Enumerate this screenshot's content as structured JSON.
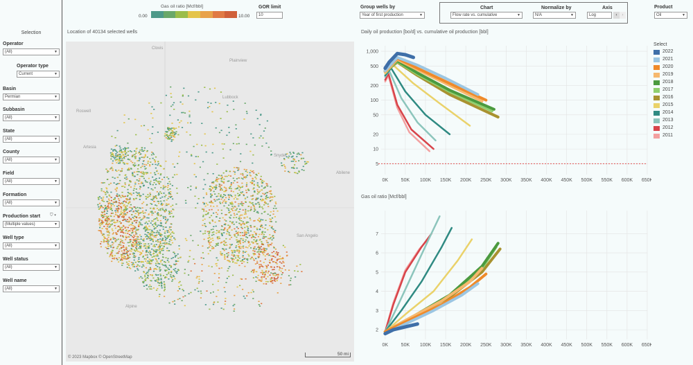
{
  "colors": {
    "accent": "#e07030"
  },
  "gor_legend": {
    "title": "Gas oil ratio [Mcf/bbl]",
    "min": "0.00",
    "max": "10.00",
    "colors": [
      "#4e9a8a",
      "#6aa86a",
      "#9bbd4a",
      "#e4c44a",
      "#e8a24a",
      "#e07a44",
      "#d0603a"
    ]
  },
  "gor_limit": {
    "label": "GOR limit",
    "value": "10"
  },
  "group_by": {
    "label": "Group wells by",
    "value": "Year of first production"
  },
  "chart_ctrl": {
    "label": "Chart",
    "value": "Flow rate vs. cumulative"
  },
  "normalize": {
    "label": "Normalize by",
    "value": "N/A"
  },
  "axis": {
    "label": "Axis",
    "value": "Log"
  },
  "product": {
    "label": "Product",
    "value": "Oil"
  },
  "sidebar": {
    "title": "Selection",
    "filters": [
      {
        "label": "Operator",
        "value": "(All)"
      },
      {
        "label": "Operator type",
        "value": "Current"
      },
      {
        "label": "Basin",
        "value": "Permian"
      },
      {
        "label": "Subbasin",
        "value": "(All)"
      },
      {
        "label": "State",
        "value": "(All)"
      },
      {
        "label": "County",
        "value": "(All)"
      },
      {
        "label": "Field",
        "value": "(All)"
      },
      {
        "label": "Formation",
        "value": "(All)"
      },
      {
        "label": "Production start",
        "value": "(Multiple values)"
      },
      {
        "label": "Well type",
        "value": "(All)"
      },
      {
        "label": "Well status",
        "value": "(All)"
      },
      {
        "label": "Well name",
        "value": "(All)"
      }
    ]
  },
  "map": {
    "title": "Location of 40134 selected wells",
    "attribution": "© 2023 Mapbox  © OpenStreetMap",
    "scale": "50 mi",
    "places": [
      "Clovis",
      "Plainview",
      "Lubbock",
      "Roswell",
      "Artesia",
      "Snyder",
      "Abilene",
      "San Angelo",
      "Alpine"
    ]
  },
  "legend": {
    "title": "Select",
    "items": [
      {
        "year": "2022",
        "color": "#3f6fa8"
      },
      {
        "year": "2021",
        "color": "#9cc6e2"
      },
      {
        "year": "2020",
        "color": "#ef8a2a"
      },
      {
        "year": "2019",
        "color": "#f6b86e"
      },
      {
        "year": "2018",
        "color": "#4b9a3f"
      },
      {
        "year": "2017",
        "color": "#8fcf6f"
      },
      {
        "year": "2016",
        "color": "#a89230"
      },
      {
        "year": "2015",
        "color": "#ead26a"
      },
      {
        "year": "2014",
        "color": "#2f8a82"
      },
      {
        "year": "2013",
        "color": "#8cc5bc"
      },
      {
        "year": "2012",
        "color": "#d8444a"
      },
      {
        "year": "2011",
        "color": "#f3a0a0"
      }
    ]
  },
  "chart_data": [
    {
      "type": "line",
      "title": "Daily oil production [bo/d] vs. cumulative oil production [bbl]",
      "xlabel": "",
      "ylabel": "",
      "yscale": "log",
      "ylim": [
        3,
        1300
      ],
      "xlim": [
        -10,
        650
      ],
      "x_ticks": [
        "0K",
        "50K",
        "100K",
        "150K",
        "200K",
        "250K",
        "300K",
        "350K",
        "400K",
        "450K",
        "500K",
        "550K",
        "600K",
        "650K"
      ],
      "y_ticks": [
        "5",
        "10",
        "20",
        "50",
        "100",
        "200",
        "500",
        "1,000"
      ],
      "y_tick_values": [
        5,
        10,
        20,
        50,
        100,
        200,
        500,
        1000
      ],
      "reference_line": 5,
      "series": [
        {
          "name": "2022",
          "x": [
            0,
            10,
            30,
            50,
            70
          ],
          "y": [
            450,
            600,
            900,
            850,
            750
          ]
        },
        {
          "name": "2021",
          "x": [
            0,
            30,
            80,
            150,
            230
          ],
          "y": [
            400,
            750,
            520,
            280,
            130
          ]
        },
        {
          "name": "2020",
          "x": [
            0,
            30,
            80,
            160,
            250
          ],
          "y": [
            400,
            720,
            450,
            220,
            100
          ]
        },
        {
          "name": "2019",
          "x": [
            0,
            30,
            80,
            160,
            240
          ],
          "y": [
            380,
            680,
            420,
            200,
            95
          ]
        },
        {
          "name": "2018",
          "x": [
            0,
            30,
            80,
            160,
            270
          ],
          "y": [
            400,
            640,
            360,
            160,
            65
          ]
        },
        {
          "name": "2017",
          "x": [
            0,
            30,
            80,
            160,
            265
          ],
          "y": [
            390,
            620,
            340,
            150,
            60
          ]
        },
        {
          "name": "2016",
          "x": [
            0,
            30,
            80,
            160,
            280
          ],
          "y": [
            380,
            600,
            320,
            130,
            45
          ]
        },
        {
          "name": "2015",
          "x": [
            0,
            20,
            70,
            140,
            210
          ],
          "y": [
            350,
            520,
            220,
            80,
            30
          ]
        },
        {
          "name": "2014",
          "x": [
            0,
            15,
            50,
            100,
            160
          ],
          "y": [
            320,
            450,
            150,
            50,
            20
          ]
        },
        {
          "name": "2013",
          "x": [
            0,
            10,
            40,
            80,
            125
          ],
          "y": [
            300,
            400,
            110,
            35,
            15
          ]
        },
        {
          "name": "2012",
          "x": [
            0,
            8,
            30,
            65,
            120
          ],
          "y": [
            260,
            350,
            80,
            25,
            10
          ]
        },
        {
          "name": "2011",
          "x": [
            0,
            8,
            30,
            60,
            110
          ],
          "y": [
            240,
            320,
            70,
            22,
            9
          ]
        }
      ]
    },
    {
      "type": "line",
      "title": "Gas oil ratio [Mcf/bbl]",
      "xlabel": "",
      "ylabel": "",
      "ylim": [
        1.5,
        8.2
      ],
      "xlim": [
        -10,
        650
      ],
      "x_ticks": [
        "0K",
        "50K",
        "100K",
        "150K",
        "200K",
        "250K",
        "300K",
        "350K",
        "400K",
        "450K",
        "500K",
        "550K",
        "600K",
        "650K"
      ],
      "y_ticks": [
        "2",
        "3",
        "4",
        "5",
        "6",
        "7"
      ],
      "y_tick_values": [
        2,
        3,
        4,
        5,
        6,
        7
      ],
      "series": [
        {
          "name": "2022",
          "x": [
            0,
            20,
            40,
            60,
            80
          ],
          "y": [
            1.8,
            2.0,
            2.1,
            2.2,
            2.3
          ]
        },
        {
          "name": "2021",
          "x": [
            0,
            50,
            120,
            190,
            230
          ],
          "y": [
            1.8,
            2.3,
            3.0,
            3.8,
            4.4
          ]
        },
        {
          "name": "2020",
          "x": [
            0,
            60,
            140,
            210,
            250
          ],
          "y": [
            1.9,
            2.5,
            3.3,
            4.2,
            4.9
          ]
        },
        {
          "name": "2019",
          "x": [
            0,
            60,
            140,
            210,
            240
          ],
          "y": [
            1.9,
            2.6,
            3.5,
            4.5,
            5.2
          ]
        },
        {
          "name": "2018",
          "x": [
            0,
            70,
            160,
            240,
            280
          ],
          "y": [
            1.9,
            2.7,
            3.8,
            5.3,
            6.5
          ]
        },
        {
          "name": "2017",
          "x": [
            0,
            70,
            160,
            240,
            275
          ],
          "y": [
            1.9,
            2.7,
            3.8,
            5.2,
            6.3
          ]
        },
        {
          "name": "2016",
          "x": [
            0,
            70,
            160,
            240,
            285
          ],
          "y": [
            1.9,
            2.7,
            3.7,
            5.0,
            6.2
          ]
        },
        {
          "name": "2015",
          "x": [
            0,
            50,
            120,
            180,
            215
          ],
          "y": [
            1.9,
            2.8,
            4.0,
            5.6,
            6.7
          ]
        },
        {
          "name": "2014",
          "x": [
            0,
            40,
            90,
            140,
            165
          ],
          "y": [
            1.9,
            3.0,
            4.5,
            6.3,
            7.3
          ]
        },
        {
          "name": "2013",
          "x": [
            0,
            30,
            70,
            110,
            135
          ],
          "y": [
            1.9,
            3.2,
            5.0,
            6.8,
            7.9
          ]
        },
        {
          "name": "2012",
          "x": [
            0,
            20,
            50,
            90,
            115
          ],
          "y": [
            1.9,
            3.3,
            5.0,
            6.3,
            7.0
          ]
        },
        {
          "name": "2011",
          "x": [
            0,
            20,
            50,
            85,
            110
          ],
          "y": [
            1.9,
            3.4,
            5.1,
            6.2,
            6.8
          ]
        }
      ]
    }
  ]
}
